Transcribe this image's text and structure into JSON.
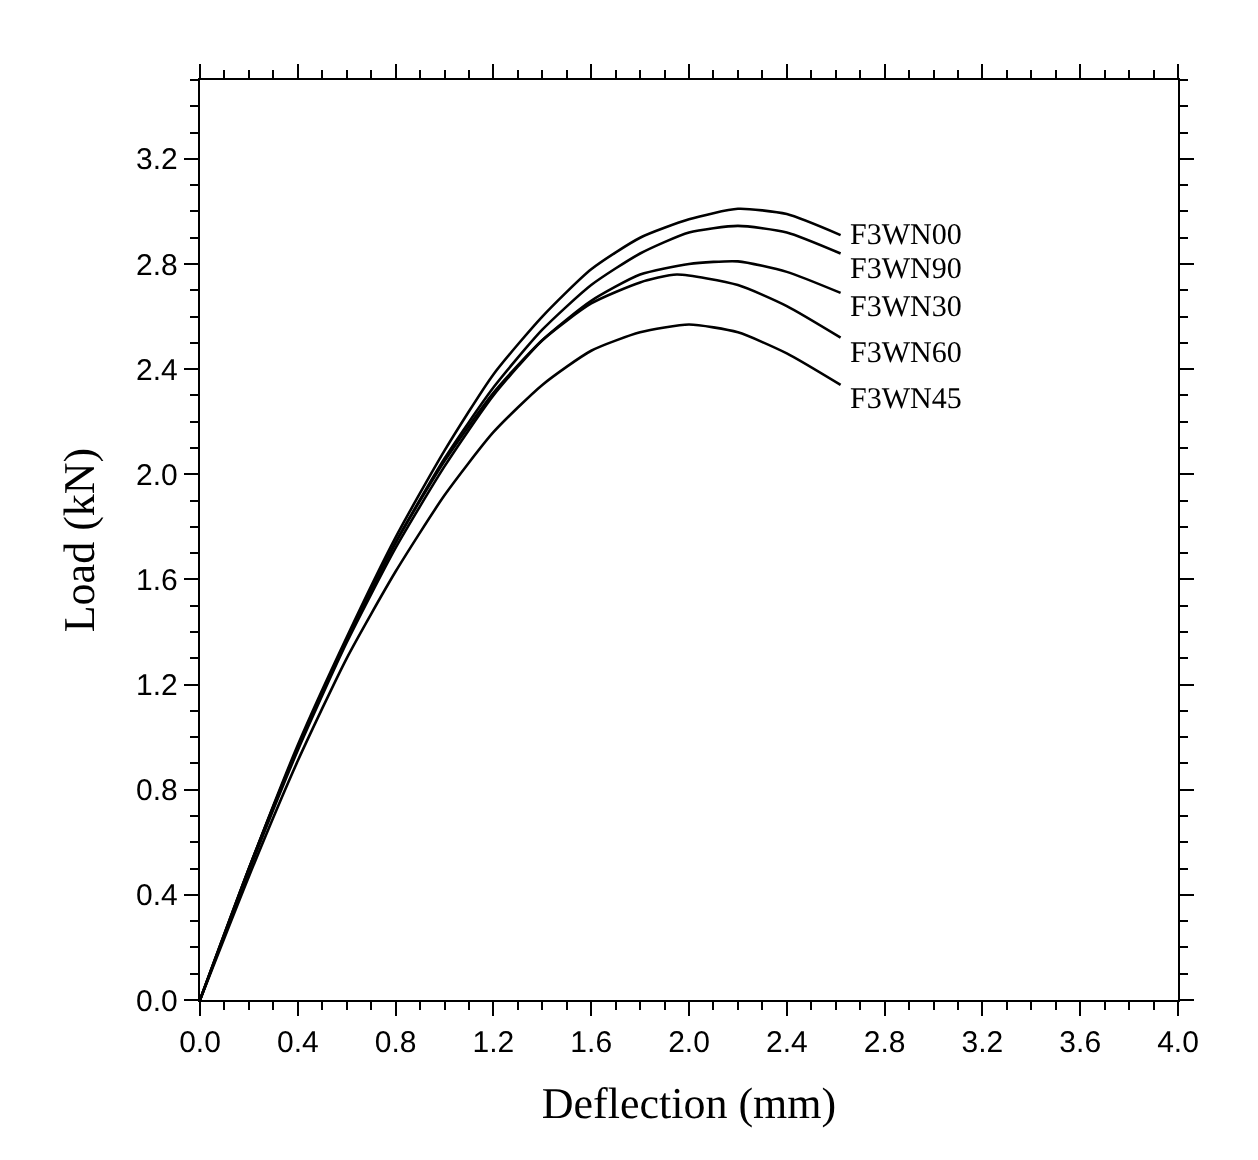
{
  "chart_data": {
    "type": "line",
    "xlabel": "Deflection (mm)",
    "ylabel": "Load (kN)",
    "xlim": [
      0,
      4
    ],
    "ylim": [
      0,
      3.5
    ],
    "xticks": [
      {
        "value": 0,
        "label": "0.0"
      },
      0.4,
      0.8,
      1.2,
      1.6,
      {
        "value": 2,
        "label": "2.0"
      },
      2.4,
      2.8,
      3.2,
      3.6,
      {
        "value": 4,
        "label": "4.0"
      }
    ],
    "yticks": [
      {
        "value": 0,
        "label": "0.0"
      },
      0.4,
      0.8,
      1.2,
      1.6,
      {
        "value": 2,
        "label": "2.0"
      },
      2.4,
      2.8,
      3.2
    ],
    "grid": false,
    "legend": false,
    "marker": "none",
    "line_style": "solid",
    "series": [
      {
        "name": "F3WN00",
        "color": "#000000",
        "x": [
          0,
          0.2,
          0.4,
          0.6,
          0.8,
          1.0,
          1.2,
          1.4,
          1.6,
          1.8,
          2.0,
          2.2,
          2.4,
          2.62
        ],
        "values": [
          0,
          0.5,
          0.97,
          1.38,
          1.76,
          2.09,
          2.38,
          2.6,
          2.78,
          2.9,
          2.97,
          3.01,
          2.99,
          2.91
        ]
      },
      {
        "name": "F3WN90",
        "color": "#000000",
        "x": [
          0,
          0.2,
          0.4,
          0.6,
          0.8,
          1.0,
          1.2,
          1.4,
          1.6,
          1.8,
          2.0,
          2.2,
          2.4,
          2.62
        ],
        "values": [
          0,
          0.5,
          0.96,
          1.37,
          1.74,
          2.06,
          2.33,
          2.55,
          2.72,
          2.84,
          2.92,
          2.945,
          2.92,
          2.84
        ]
      },
      {
        "name": "F3WN30",
        "color": "#000000",
        "x": [
          0,
          0.2,
          0.4,
          0.6,
          0.8,
          1.0,
          1.2,
          1.4,
          1.6,
          1.8,
          2.0,
          2.2,
          2.4,
          2.62
        ],
        "values": [
          0,
          0.49,
          0.95,
          1.36,
          1.72,
          2.03,
          2.3,
          2.51,
          2.66,
          2.76,
          2.8,
          2.81,
          2.77,
          2.69
        ]
      },
      {
        "name": "F3WN60",
        "color": "#000000",
        "x": [
          0,
          0.2,
          0.4,
          0.6,
          0.8,
          1.0,
          1.2,
          1.4,
          1.6,
          1.8,
          1.95,
          2.2,
          2.4,
          2.62
        ],
        "values": [
          0,
          0.5,
          0.96,
          1.37,
          1.74,
          2.05,
          2.31,
          2.51,
          2.65,
          2.73,
          2.76,
          2.72,
          2.64,
          2.52
        ]
      },
      {
        "name": "F3WN45",
        "color": "#000000",
        "x": [
          0,
          0.2,
          0.4,
          0.6,
          0.8,
          1.0,
          1.2,
          1.4,
          1.6,
          1.8,
          2.0,
          2.2,
          2.4,
          2.62
        ],
        "values": [
          0,
          0.47,
          0.91,
          1.3,
          1.63,
          1.92,
          2.16,
          2.34,
          2.47,
          2.54,
          2.57,
          2.54,
          2.46,
          2.34
        ]
      }
    ]
  }
}
